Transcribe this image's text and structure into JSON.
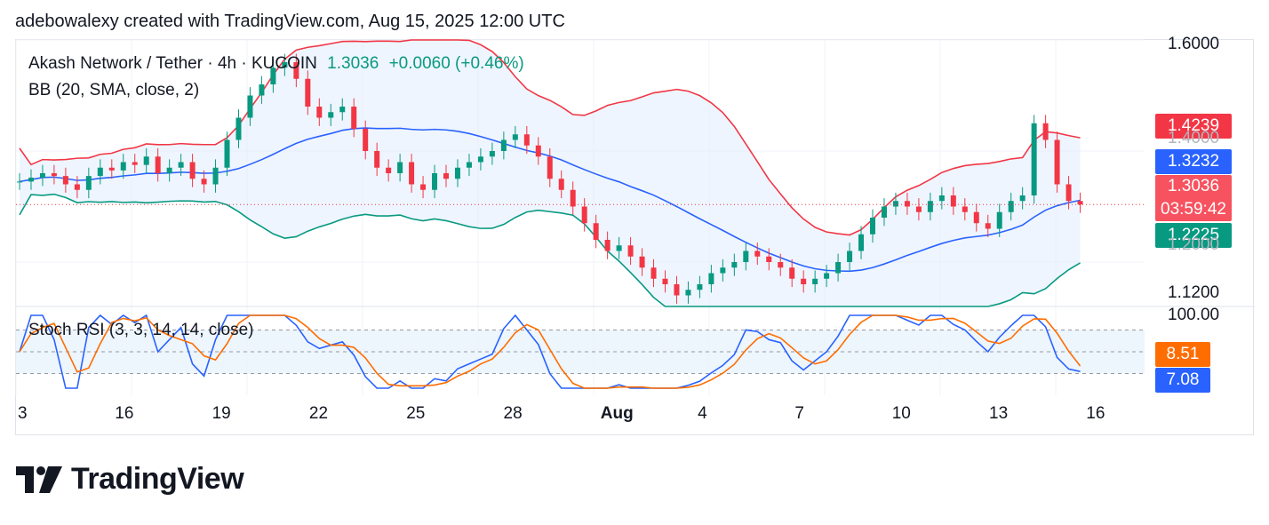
{
  "header": {
    "text": "adebowalexy created with TradingView.com, Aug 15, 2025 12:00 UTC"
  },
  "legend": {
    "symbol": "Akash Network / Tether · 4h · KUCOIN",
    "last": "1.3036",
    "change": "+0.0060 (+0.46%)",
    "bb": "BB (20, SMA, close, 2)",
    "stoch": "Stoch RSI (3, 3, 14, 14, close)"
  },
  "price_tags": {
    "upper": {
      "text": "1.4239",
      "color": "#f23645"
    },
    "middle": {
      "text": "1.3232",
      "color": "#2962ff"
    },
    "last": {
      "text": "1.3036",
      "color": "#f7525f"
    },
    "countdown": "03:59:42",
    "lower": {
      "text": "1.2225",
      "color": "#089981"
    },
    "stoch_k": {
      "text": "8.51",
      "color": "#ff6d00"
    },
    "stoch_d": {
      "text": "7.08",
      "color": "#2962ff"
    }
  },
  "y_ticks": [
    "1.6000",
    "1.4000",
    "1.2000",
    "1.1200"
  ],
  "stoch_ticks": [
    "100.00"
  ],
  "x_ticks": [
    "3",
    "16",
    "19",
    "22",
    "25",
    "28",
    "Aug",
    "4",
    "7",
    "10",
    "13",
    "16"
  ],
  "logo": {
    "text": "TradingView"
  },
  "chart_data": {
    "type": "candlestick",
    "symbol": "Akash Network / Tether",
    "interval": "4h",
    "exchange": "KUCOIN",
    "ylim": [
      1.12,
      1.6
    ],
    "x_tick_labels": [
      "3",
      "16",
      "19",
      "22",
      "25",
      "28",
      "Aug",
      "4",
      "7",
      "10",
      "13",
      "16"
    ],
    "indicators": {
      "bollinger": {
        "params": "BB (20, SMA, close, 2)",
        "upper": 1.4239,
        "basis": 1.3232,
        "lower": 1.2225,
        "colors": {
          "upper": "#f23645",
          "basis": "#2962ff",
          "lower": "#089981"
        }
      },
      "stoch_rsi": {
        "params": "Stoch RSI (3, 3, 14, 14, close)",
        "k": 8.51,
        "d": 7.08,
        "upper_band": 80,
        "lower_band": 20,
        "ylim": [
          0,
          100
        ]
      }
    },
    "close_series": [
      1.345,
      1.352,
      1.36,
      1.355,
      1.34,
      1.33,
      1.355,
      1.37,
      1.365,
      1.38,
      1.375,
      1.39,
      1.36,
      1.37,
      1.38,
      1.35,
      1.34,
      1.37,
      1.42,
      1.46,
      1.5,
      1.52,
      1.55,
      1.56,
      1.53,
      1.48,
      1.46,
      1.47,
      1.48,
      1.44,
      1.4,
      1.37,
      1.36,
      1.38,
      1.34,
      1.33,
      1.36,
      1.35,
      1.37,
      1.38,
      1.39,
      1.4,
      1.42,
      1.43,
      1.41,
      1.39,
      1.35,
      1.33,
      1.3,
      1.27,
      1.24,
      1.22,
      1.23,
      1.21,
      1.19,
      1.17,
      1.16,
      1.14,
      1.15,
      1.16,
      1.18,
      1.19,
      1.2,
      1.22,
      1.21,
      1.2,
      1.19,
      1.17,
      1.16,
      1.17,
      1.18,
      1.2,
      1.22,
      1.25,
      1.28,
      1.3,
      1.31,
      1.3,
      1.29,
      1.31,
      1.32,
      1.3,
      1.29,
      1.27,
      1.26,
      1.29,
      1.31,
      1.32,
      1.45,
      1.42,
      1.34,
      1.31,
      1.3036
    ],
    "last_price": 1.3036,
    "countdown": "03:59:42",
    "colors": {
      "up": "#089981",
      "down": "#f23645",
      "band_fill": "#e3effd"
    }
  }
}
